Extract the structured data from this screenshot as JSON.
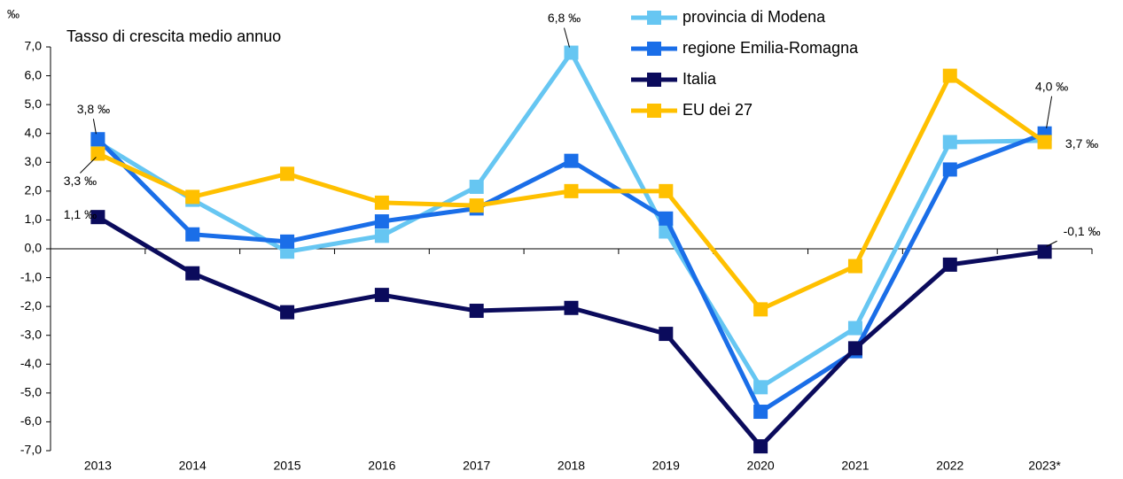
{
  "chart_data": {
    "type": "line",
    "title": "Tasso di crescita medio annuo",
    "y_label": "‰",
    "categories": [
      "2013",
      "2014",
      "2015",
      "2016",
      "2017",
      "2018",
      "2019",
      "2020",
      "2021",
      "2022",
      "2023*"
    ],
    "series": [
      {
        "name": "provincia di Modena",
        "color": "#66c6f2",
        "values": [
          3.7,
          1.7,
          -0.1,
          0.45,
          2.15,
          6.8,
          0.6,
          -4.8,
          -2.75,
          3.7,
          3.75
        ],
        "value_labels": [
          null,
          null,
          null,
          null,
          null,
          "6,8 ‰",
          null,
          null,
          null,
          null,
          null
        ]
      },
      {
        "name": "regione Emilia-Romagna",
        "color": "#1a6ee8",
        "values": [
          3.8,
          0.5,
          0.25,
          0.95,
          1.4,
          3.05,
          1.05,
          -5.65,
          -3.55,
          2.75,
          4.0
        ],
        "value_labels": [
          "3,8 ‰",
          null,
          null,
          null,
          null,
          null,
          null,
          null,
          null,
          null,
          "4,0 ‰"
        ]
      },
      {
        "name": "Italia",
        "color": "#0b0b5c",
        "values": [
          1.1,
          -0.85,
          -2.2,
          -1.6,
          -2.15,
          -2.05,
          -2.95,
          -6.85,
          -3.45,
          -0.55,
          -0.1
        ],
        "value_labels": [
          "1,1 ‰",
          null,
          null,
          null,
          null,
          null,
          null,
          null,
          null,
          null,
          "-0,1 ‰"
        ]
      },
      {
        "name": "EU dei 27",
        "color": "#ffc000",
        "values": [
          3.3,
          1.8,
          2.6,
          1.6,
          1.5,
          2.0,
          2.0,
          -2.1,
          -0.6,
          6.0,
          3.7
        ],
        "value_labels": [
          "3,3 ‰",
          null,
          null,
          null,
          null,
          null,
          null,
          null,
          null,
          null,
          "3,7 ‰"
        ]
      }
    ],
    "ylim": [
      -7,
      7
    ],
    "yticks": [
      {
        "value": -7,
        "label": "-7,0"
      },
      {
        "value": -6,
        "label": "-6,0"
      },
      {
        "value": -5,
        "label": "-5,0"
      },
      {
        "value": -4,
        "label": "-4,0"
      },
      {
        "value": -3,
        "label": "-3,0"
      },
      {
        "value": -2,
        "label": "-2,0"
      },
      {
        "value": -1,
        "label": "-1,0"
      },
      {
        "value": 0,
        "label": "0,0"
      },
      {
        "value": 1,
        "label": "1,0"
      },
      {
        "value": 2,
        "label": "2,0"
      },
      {
        "value": 3,
        "label": "3,0"
      },
      {
        "value": 4,
        "label": "4,0"
      },
      {
        "value": 5,
        "label": "5,0"
      },
      {
        "value": 6,
        "label": "6,0"
      },
      {
        "value": 7,
        "label": "7,0"
      }
    ],
    "legend": "top-right"
  }
}
